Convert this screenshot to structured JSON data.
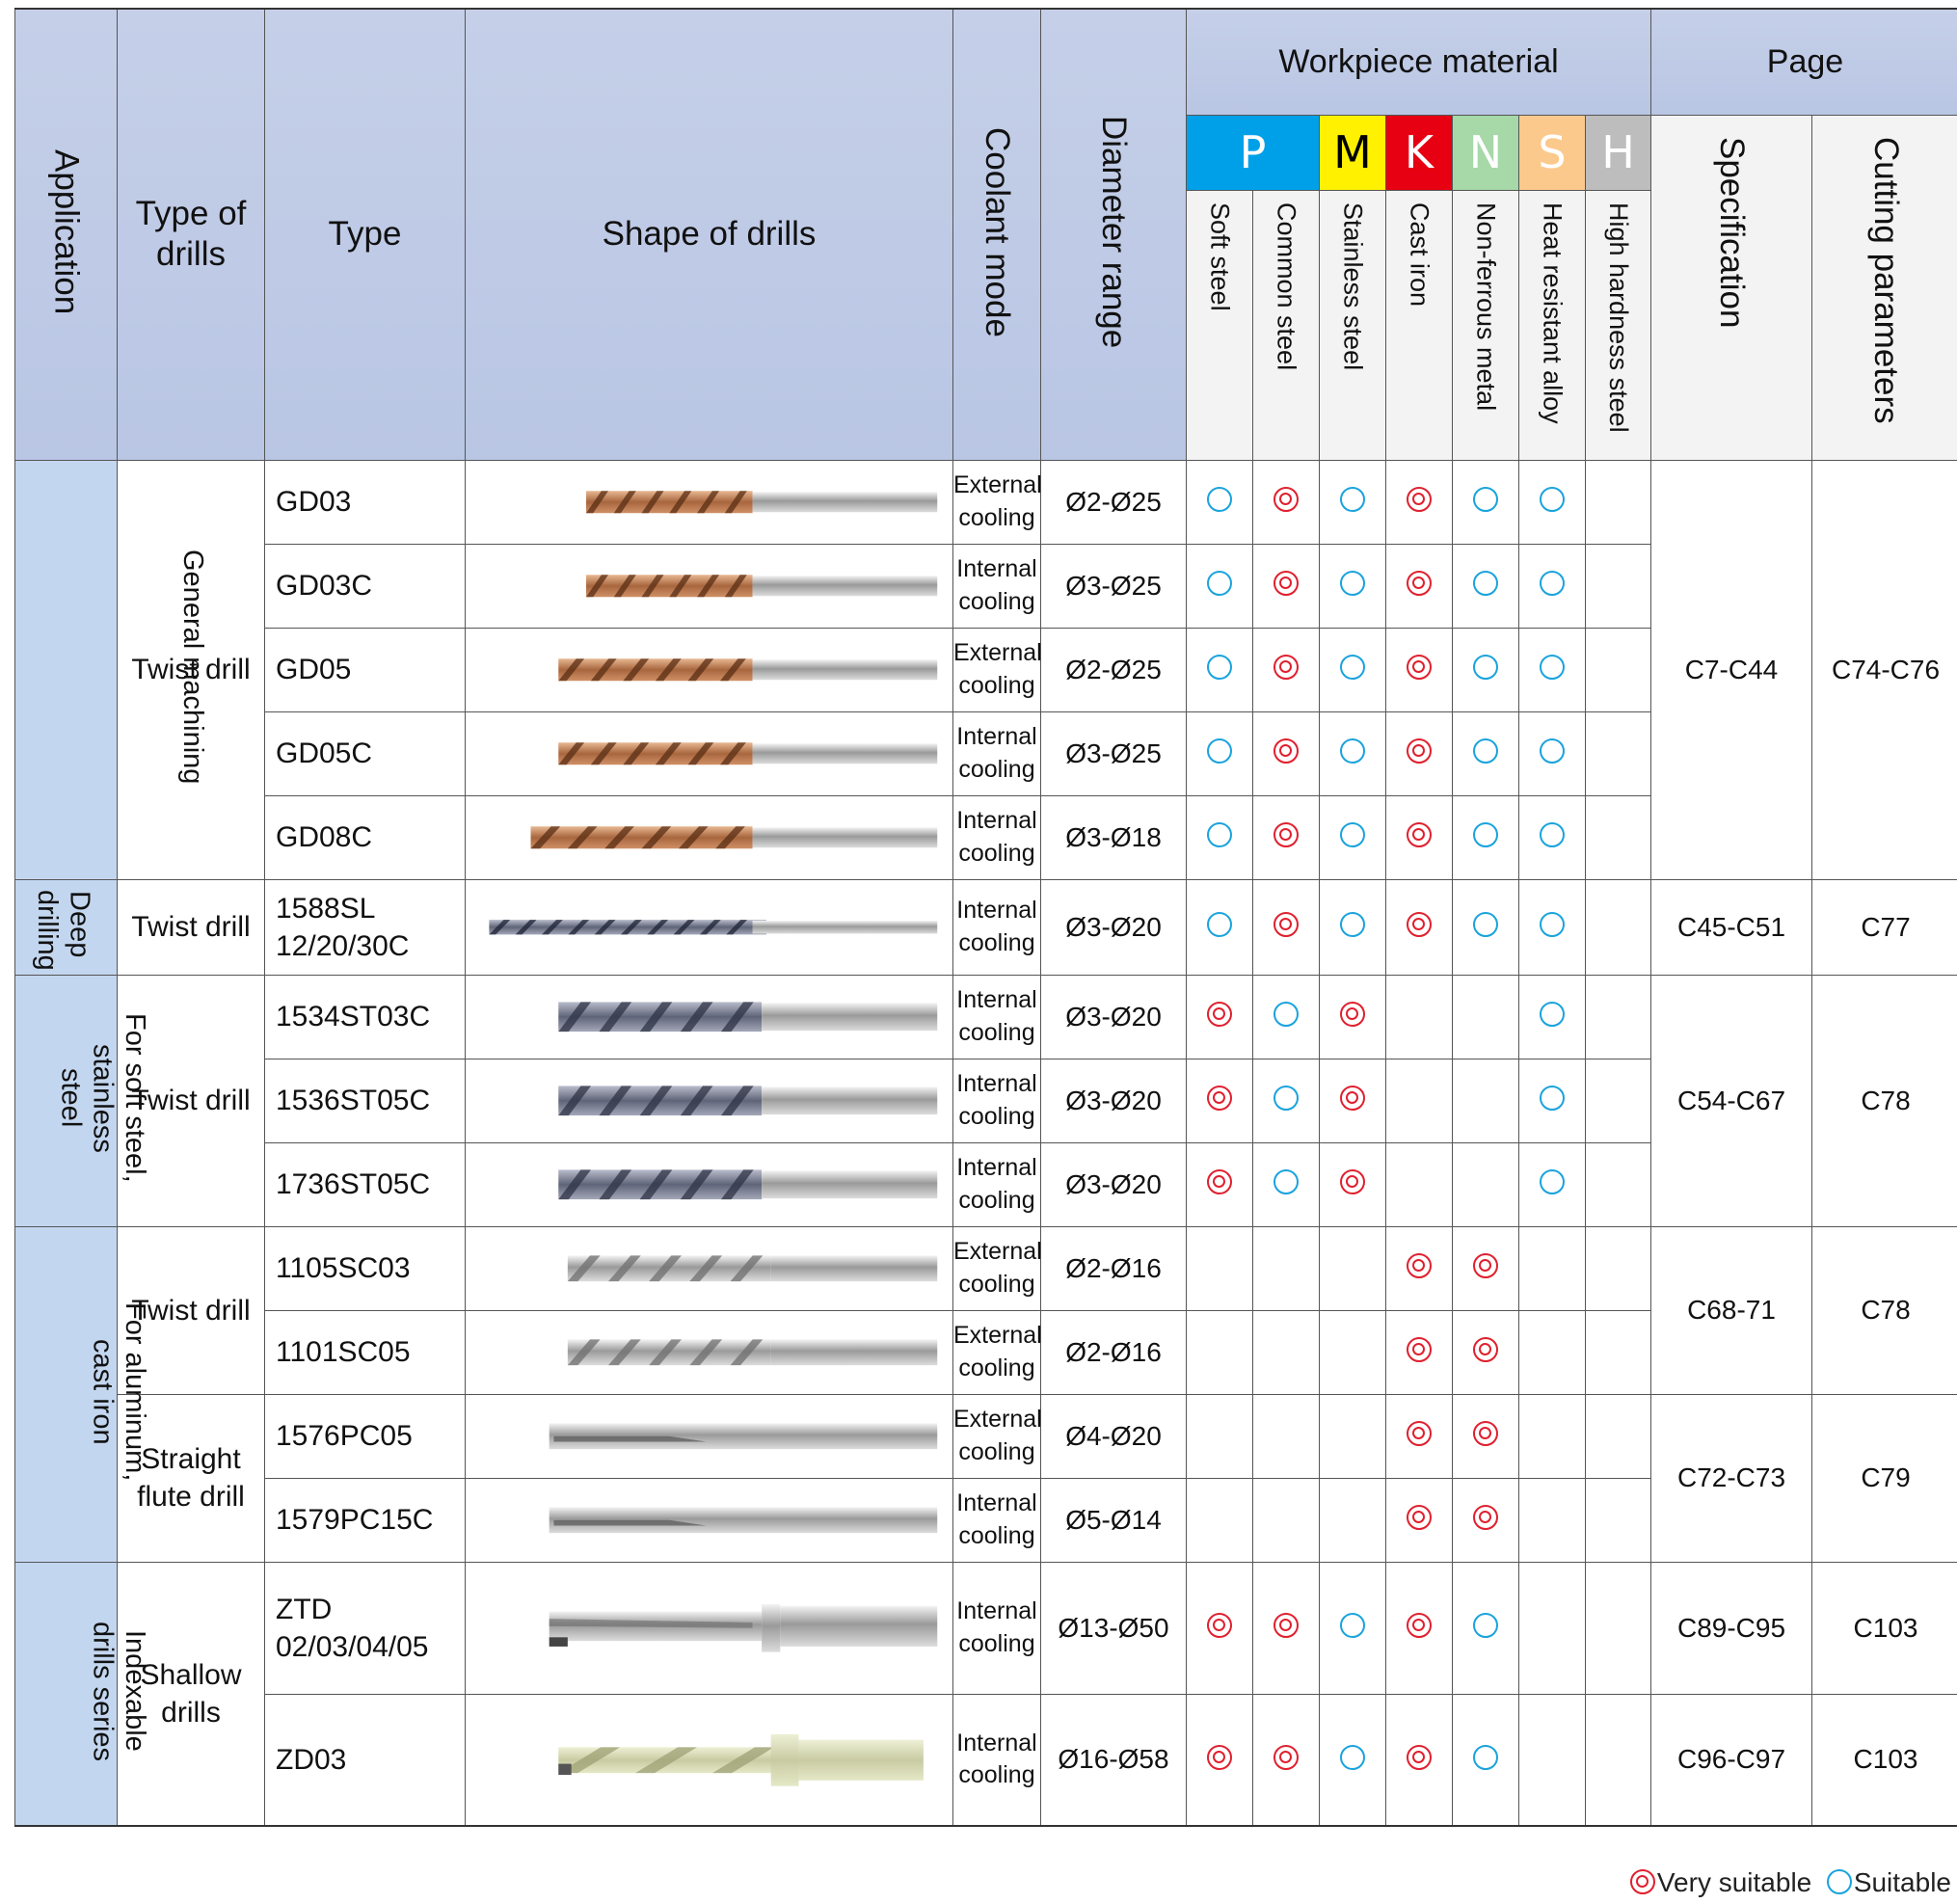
{
  "header": {
    "application": "Application",
    "type_of_drills": "Type of drills",
    "type": "Type",
    "shape": "Shape of drills",
    "coolant": "Coolant mode",
    "diameter": "Diameter range",
    "workpiece": "Workpiece material",
    "page": "Page",
    "specification": "Specification",
    "cutting": "Cutting parameters",
    "materials": [
      {
        "letter": "P",
        "name": "Soft steel",
        "color": "#00a0e9",
        "text": "#ffffff"
      },
      {
        "letter": "",
        "name": "Common steel",
        "color": "#00a0e9",
        "text": "#ffffff"
      },
      {
        "letter": "M",
        "name": "Stainless steel",
        "color": "#fff100",
        "text": "#000000"
      },
      {
        "letter": "K",
        "name": "Cast iron",
        "color": "#e60012",
        "text": "#ffffff"
      },
      {
        "letter": "N",
        "name": "Non-ferrous metal",
        "color": "#a6d8a8",
        "text": "#ffffff"
      },
      {
        "letter": "S",
        "name": "Heat resistant alloy",
        "color": "#fcc98d",
        "text": "#ffffff"
      },
      {
        "letter": "H",
        "name": "High hardness steel",
        "color": "#bdbdbd",
        "text": "#ffffff"
      }
    ]
  },
  "groups": [
    {
      "application": "General machining",
      "subgroups": [
        {
          "type_of_drills": "Twist drill",
          "spec": "C7-C44",
          "cutting": "C74-C76",
          "rows": [
            {
              "type": "GD03",
              "coolant": [
                "External",
                "cooling"
              ],
              "diameter": "Ø2-Ø25",
              "suit": [
                "s",
                "v",
                "s",
                "v",
                "s",
                "s",
                ""
              ],
              "drill": "copper"
            },
            {
              "type": "GD03C",
              "coolant": [
                "Internal",
                "cooling"
              ],
              "diameter": "Ø3-Ø25",
              "suit": [
                "s",
                "v",
                "s",
                "v",
                "s",
                "s",
                ""
              ],
              "drill": "copper"
            },
            {
              "type": "GD05",
              "coolant": [
                "External",
                "cooling"
              ],
              "diameter": "Ø2-Ø25",
              "suit": [
                "s",
                "v",
                "s",
                "v",
                "s",
                "s",
                ""
              ],
              "drill": "copper"
            },
            {
              "type": "GD05C",
              "coolant": [
                "Internal",
                "cooling"
              ],
              "diameter": "Ø3-Ø25",
              "suit": [
                "s",
                "v",
                "s",
                "v",
                "s",
                "s",
                ""
              ],
              "drill": "copper"
            },
            {
              "type": "GD08C",
              "coolant": [
                "Internal",
                "cooling"
              ],
              "diameter": "Ø3-Ø18",
              "suit": [
                "s",
                "v",
                "s",
                "v",
                "s",
                "s",
                ""
              ],
              "drill": "copper"
            }
          ]
        }
      ]
    },
    {
      "application": "Deep drilling",
      "subgroups": [
        {
          "type_of_drills": "Twist drill",
          "spec": "C45-C51",
          "cutting": "C77",
          "rows": [
            {
              "type": "1588SL",
              "type2": "12/20/30C",
              "coolant": [
                "Internal",
                "cooling"
              ],
              "diameter": "Ø3-Ø20",
              "suit": [
                "s",
                "v",
                "s",
                "v",
                "s",
                "s",
                ""
              ],
              "drill": "long"
            }
          ]
        }
      ]
    },
    {
      "application": "For soft steel, stainless steel",
      "subgroups": [
        {
          "type_of_drills": "Twist drill",
          "spec": "C54-C67",
          "cutting": "C78",
          "rows": [
            {
              "type": "1534ST03C",
              "coolant": [
                "Internal",
                "cooling"
              ],
              "diameter": "Ø3-Ø20",
              "suit": [
                "v",
                "s",
                "v",
                "",
                "",
                "s",
                ""
              ],
              "drill": "gray"
            },
            {
              "type": "1536ST05C",
              "coolant": [
                "Internal",
                "cooling"
              ],
              "diameter": "Ø3-Ø20",
              "suit": [
                "v",
                "s",
                "v",
                "",
                "",
                "s",
                ""
              ],
              "drill": "gray"
            },
            {
              "type": "1736ST05C",
              "coolant": [
                "Internal",
                "cooling"
              ],
              "diameter": "Ø3-Ø20",
              "suit": [
                "v",
                "s",
                "v",
                "",
                "",
                "s",
                ""
              ],
              "drill": "gray"
            }
          ]
        }
      ]
    },
    {
      "application": "For aluminum, cast iron",
      "subgroups": [
        {
          "type_of_drills": "Twist drill",
          "spec": "C68-71",
          "cutting": "C78",
          "rows": [
            {
              "type": "1105SC03",
              "coolant": [
                "External",
                "cooling"
              ],
              "diameter": "Ø2-Ø16",
              "suit": [
                "",
                "",
                "",
                "v",
                "v",
                "",
                ""
              ],
              "drill": "silver"
            },
            {
              "type": "1101SC05",
              "coolant": [
                "External",
                "cooling"
              ],
              "diameter": "Ø2-Ø16",
              "suit": [
                "",
                "",
                "",
                "v",
                "v",
                "",
                ""
              ],
              "drill": "silver"
            }
          ]
        },
        {
          "type_of_drills": "Straight flute drill",
          "spec": "C72-C73",
          "cutting": "C79",
          "rows": [
            {
              "type": "1576PC05",
              "coolant": [
                "External",
                "cooling"
              ],
              "diameter": "Ø4-Ø20",
              "suit": [
                "",
                "",
                "",
                "v",
                "v",
                "",
                ""
              ],
              "drill": "straight"
            },
            {
              "type": "1579PC15C",
              "coolant": [
                "Internal",
                "cooling"
              ],
              "diameter": "Ø5-Ø14",
              "suit": [
                "",
                "",
                "",
                "v",
                "v",
                "",
                ""
              ],
              "drill": "straight"
            }
          ]
        }
      ]
    },
    {
      "application": "Indexable drills series",
      "subgroups": [
        {
          "type_of_drills": "Shallow drills",
          "rows": [
            {
              "type": "ZTD",
              "type2": "02/03/04/05",
              "coolant": [
                "Internal",
                "cooling"
              ],
              "diameter": "Ø13-Ø50",
              "suit": [
                "v",
                "v",
                "s",
                "v",
                "s",
                "",
                ""
              ],
              "drill": "indexable",
              "spec": "C89-C95",
              "cutting": "C103"
            },
            {
              "type": "ZD03",
              "coolant": [
                "Internal",
                "cooling"
              ],
              "diameter": "Ø16-Ø58",
              "suit": [
                "v",
                "v",
                "s",
                "v",
                "s",
                "",
                ""
              ],
              "drill": "cream",
              "spec": "C96-C97",
              "cutting": "C103"
            }
          ]
        }
      ]
    }
  ],
  "legend": {
    "very": "Very suitable",
    "suit": "Suitable"
  }
}
